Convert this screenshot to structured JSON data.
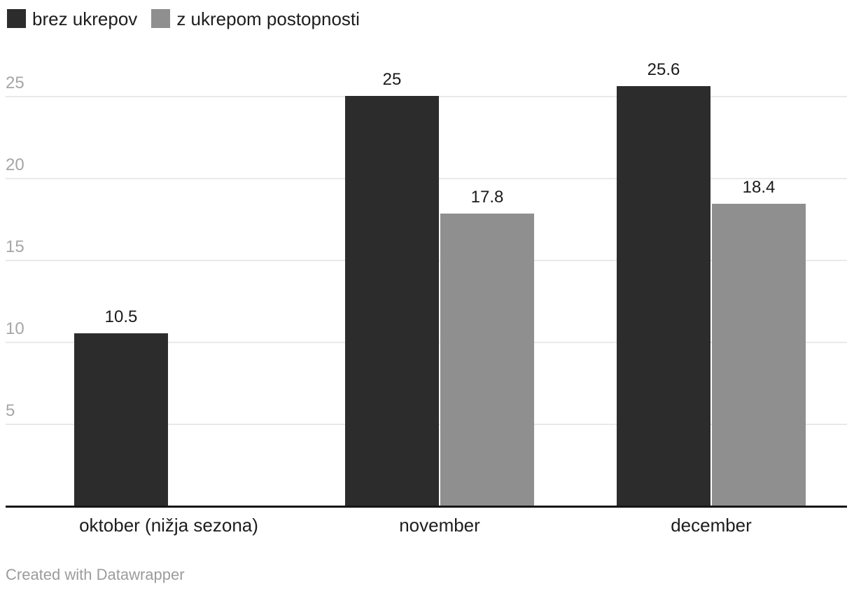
{
  "legend": {
    "items": [
      {
        "label": "brez ukrepov",
        "color": "#2c2c2c"
      },
      {
        "label": "z ukrepom postopnosti",
        "color": "#8f8f8f"
      }
    ]
  },
  "footer": {
    "credit": "Created with Datawrapper"
  },
  "chart_data": {
    "type": "bar",
    "title": "",
    "xlabel": "",
    "ylabel": "",
    "categories": [
      "oktober (nižja sezona)",
      "november",
      "december"
    ],
    "series": [
      {
        "name": "brez ukrepov",
        "color": "#2c2c2c",
        "values": [
          10.5,
          25,
          25.6
        ]
      },
      {
        "name": "z ukrepom postopnosti",
        "color": "#8f8f8f",
        "values": [
          null,
          17.8,
          18.4
        ]
      }
    ],
    "yticks": [
      5,
      10,
      15,
      20,
      25
    ],
    "ylim": [
      0,
      30
    ],
    "grid": "horizontal",
    "legend_position": "top-left",
    "value_labels_shown": true,
    "credit": "Created with Datawrapper"
  }
}
